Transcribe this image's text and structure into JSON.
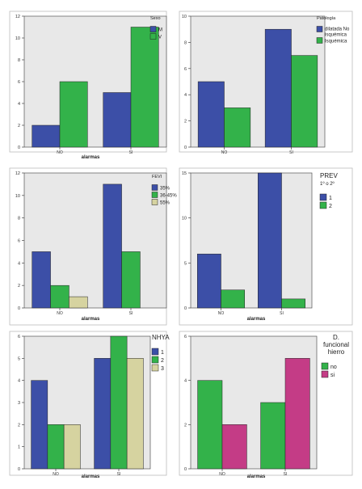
{
  "chart_data": [
    {
      "type": "bar",
      "categories": [
        "NO",
        "SI"
      ],
      "xlabel": "alarmas",
      "ylabel": "",
      "ylim": [
        0,
        12
      ],
      "yticks": [
        0,
        2,
        4,
        6,
        8,
        10,
        12
      ],
      "legend_title": "Sexo",
      "series": [
        {
          "name": "M",
          "color": "#3c4fa7",
          "values": [
            2,
            5
          ]
        },
        {
          "name": "V",
          "color": "#33b24a",
          "values": [
            6,
            11
          ]
        }
      ]
    },
    {
      "type": "bar",
      "categories": [
        "NO",
        "SI"
      ],
      "xlabel": "",
      "ylabel": "",
      "ylim": [
        0,
        10
      ],
      "yticks": [
        0,
        2,
        4,
        6,
        8,
        10
      ],
      "legend_title": "Patología",
      "series": [
        {
          "name": "dilatada No isquémica",
          "color": "#3c4fa7",
          "values": [
            5,
            9
          ]
        },
        {
          "name": "Isquémica",
          "color": "#33b24a",
          "values": [
            3,
            7
          ]
        }
      ]
    },
    {
      "type": "bar",
      "categories": [
        "NO",
        "SI"
      ],
      "xlabel": "alarmas",
      "ylabel": "",
      "ylim": [
        0,
        12
      ],
      "yticks": [
        0,
        2,
        4,
        6,
        8,
        10,
        12
      ],
      "legend_title": "FEVI",
      "series": [
        {
          "name": "35%",
          "color": "#3c4fa7",
          "values": [
            5,
            11
          ]
        },
        {
          "name": "36-45%",
          "color": "#33b24a",
          "values": [
            2,
            5
          ]
        },
        {
          "name": "55%",
          "color": "#d6d3a0",
          "values": [
            1,
            0
          ]
        }
      ]
    },
    {
      "type": "bar",
      "categories": [
        "NO",
        "SI"
      ],
      "xlabel": "alarmas",
      "ylabel": "",
      "ylim": [
        0,
        15
      ],
      "yticks": [
        0,
        5,
        10,
        15
      ],
      "legend_title": "PREV 1º o 2º",
      "series": [
        {
          "name": "1",
          "color": "#3c4fa7",
          "values": [
            6,
            15
          ]
        },
        {
          "name": "2",
          "color": "#33b24a",
          "values": [
            2,
            1
          ]
        }
      ]
    },
    {
      "type": "bar",
      "categories": [
        "NO",
        "SI"
      ],
      "xlabel": "alarmas",
      "ylabel": "",
      "ylim": [
        0,
        6
      ],
      "yticks": [
        0,
        1,
        2,
        3,
        4,
        5,
        6
      ],
      "legend_title": "NHYA",
      "series": [
        {
          "name": "1",
          "color": "#3c4fa7",
          "values": [
            4,
            5
          ]
        },
        {
          "name": "2",
          "color": "#33b24a",
          "values": [
            2,
            6
          ]
        },
        {
          "name": "3",
          "color": "#d6d3a0",
          "values": [
            2,
            5
          ]
        }
      ]
    },
    {
      "type": "bar",
      "categories": [
        "NO",
        "SI"
      ],
      "xlabel": "alarmas",
      "ylabel": "",
      "ylim": [
        0,
        6
      ],
      "yticks": [
        0,
        2,
        4,
        6
      ],
      "legend_title": "D. funcional hierro",
      "series": [
        {
          "name": "no",
          "color": "#33b24a",
          "values": [
            4,
            3
          ]
        },
        {
          "name": "si",
          "color": "#c43c86",
          "values": [
            2,
            5
          ]
        }
      ]
    }
  ]
}
